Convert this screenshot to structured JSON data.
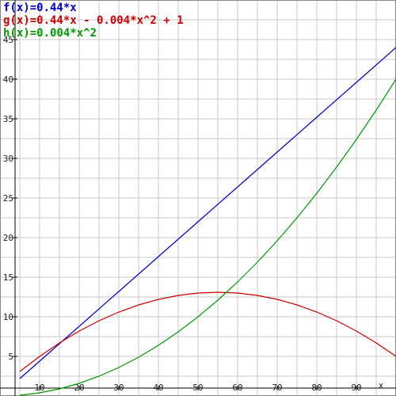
{
  "chart_data": {
    "type": "line",
    "x_axis_label": "x",
    "xlim": [
      5,
      100
    ],
    "ylim": [
      0,
      45
    ],
    "x_ticks": [
      10,
      20,
      30,
      40,
      50,
      60,
      70,
      80,
      90
    ],
    "x_tick_labels": [
      "10",
      "20",
      "30",
      "40",
      "50",
      "60",
      "70",
      "80",
      "90"
    ],
    "y_ticks": [
      5,
      10,
      15,
      20,
      25,
      30,
      35,
      40,
      45
    ],
    "y_tick_labels": [
      "5",
      "10",
      "15",
      "20",
      "25",
      "30",
      "35",
      "40",
      "45"
    ],
    "grid": true,
    "legend_position": "top-left",
    "series": [
      {
        "name": "f(x)=0.44*x",
        "color": "#0000cc",
        "x": [
          5,
          10,
          20,
          30,
          40,
          50,
          60,
          70,
          80,
          90,
          100
        ],
        "y": [
          2.2,
          4.4,
          8.8,
          13.2,
          17.6,
          22.0,
          26.4,
          30.8,
          35.2,
          39.6,
          44.0
        ]
      },
      {
        "name": "g(x)=0.44*x - 0.004*x^2 + 1",
        "color": "#cc0000",
        "x": [
          5,
          10,
          15,
          20,
          25,
          30,
          35,
          40,
          45,
          50,
          55,
          60,
          65,
          70,
          75,
          80,
          85,
          90,
          95,
          100
        ],
        "y": [
          3.1,
          5.0,
          6.7,
          8.2,
          9.5,
          10.6,
          11.5,
          12.2,
          12.7,
          13.0,
          13.1,
          13.0,
          12.7,
          12.2,
          11.5,
          10.6,
          9.5,
          8.2,
          6.7,
          5.0
        ]
      },
      {
        "name": "h(x)=0.004*x^2",
        "color": "#009900",
        "x": [
          5,
          10,
          15,
          20,
          25,
          30,
          35,
          40,
          45,
          50,
          55,
          60,
          65,
          70,
          75,
          80,
          85,
          90,
          95,
          100
        ],
        "y": [
          0.1,
          0.4,
          0.9,
          1.6,
          2.5,
          3.6,
          4.9,
          6.4,
          8.1,
          10.0,
          12.1,
          14.4,
          16.9,
          19.6,
          22.5,
          25.6,
          28.9,
          32.4,
          36.1,
          40.0
        ]
      }
    ]
  }
}
